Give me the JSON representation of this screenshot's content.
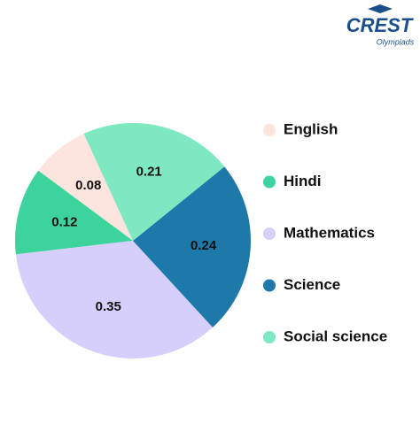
{
  "logo": {
    "name": "CREST",
    "tagline": "Olympiads"
  },
  "chart_data": {
    "type": "pie",
    "categories": [
      "English",
      "Hindi",
      "Mathematics",
      "Science",
      "Social science"
    ],
    "values": [
      0.08,
      0.12,
      0.35,
      0.24,
      0.21
    ],
    "colors": [
      "#fde4df",
      "#3dd39d",
      "#d6cffb",
      "#1c79a9",
      "#7ee8c1"
    ],
    "legend": "right"
  }
}
